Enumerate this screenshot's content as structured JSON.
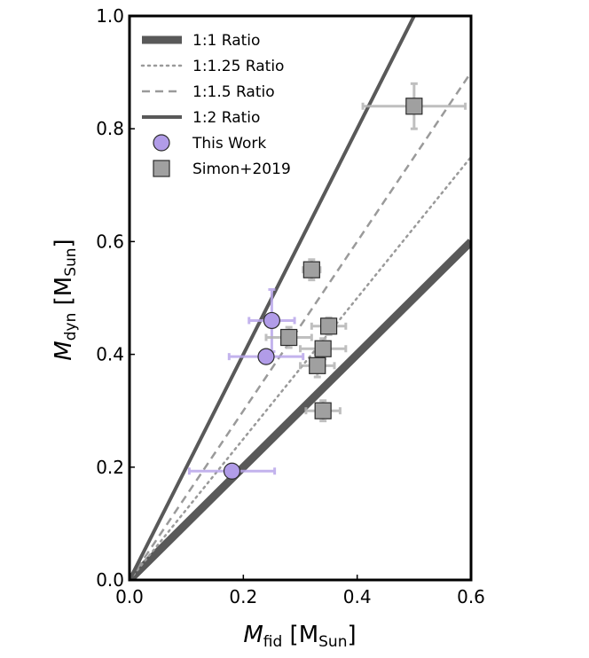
{
  "chart_data": {
    "type": "scatter",
    "title": "",
    "xlabel": {
      "main": "M",
      "sub": "fid",
      "unit_open": " [M",
      "unit_sub": "Sun",
      "unit_close": "]"
    },
    "ylabel": {
      "main": "M",
      "sub": "dyn",
      "unit_open": " [M",
      "unit_sub": "Sun",
      "unit_close": "]"
    },
    "xlim": [
      0.0,
      0.6
    ],
    "ylim": [
      0.0,
      1.0
    ],
    "xticks": [
      0.0,
      0.2,
      0.4,
      0.6
    ],
    "yticks": [
      0.0,
      0.2,
      0.4,
      0.6,
      0.8,
      1.0
    ],
    "xtick_labels": [
      "0.0",
      "0.2",
      "0.4",
      "0.6"
    ],
    "ytick_labels": [
      "0.0",
      "0.2",
      "0.4",
      "0.6",
      "0.8",
      "1.0"
    ],
    "grid": false,
    "legend_position": "top-left",
    "ratio_lines": [
      {
        "name": "1:1 Ratio",
        "slope": 1.0,
        "style": "solid",
        "weight": "thick",
        "color": "#595959"
      },
      {
        "name": "1:1.25 Ratio",
        "slope": 1.25,
        "style": "dotted",
        "weight": "thin",
        "color": "#9a9a9a"
      },
      {
        "name": "1:1.5 Ratio",
        "slope": 1.5,
        "style": "dashed",
        "weight": "thin",
        "color": "#9a9a9a"
      },
      {
        "name": "1:2 Ratio",
        "slope": 2.0,
        "style": "solid",
        "weight": "medium",
        "color": "#595959"
      }
    ],
    "series": [
      {
        "name": "This Work",
        "marker": "circle",
        "color": "#b19ce8",
        "error_color": "#b9a6ea",
        "points": [
          {
            "x": 0.18,
            "y": 0.193,
            "xerr": 0.075,
            "yerr": 0.0
          },
          {
            "x": 0.24,
            "y": 0.396,
            "xerr": 0.065,
            "yerr": 0.0
          },
          {
            "x": 0.25,
            "y": 0.46,
            "xerr": 0.04,
            "yerr": 0.055
          }
        ]
      },
      {
        "name": "Simon+2019",
        "marker": "square",
        "color": "#a0a0a0",
        "error_color": "#b4b4b4",
        "points": [
          {
            "x": 0.5,
            "y": 0.84,
            "xerr": 0.09,
            "yerr": 0.04
          },
          {
            "x": 0.32,
            "y": 0.55,
            "xerr": 0.015,
            "yerr": 0.018
          },
          {
            "x": 0.28,
            "y": 0.43,
            "xerr": 0.04,
            "yerr": 0.018
          },
          {
            "x": 0.35,
            "y": 0.45,
            "xerr": 0.03,
            "yerr": 0.015
          },
          {
            "x": 0.34,
            "y": 0.41,
            "xerr": 0.04,
            "yerr": 0.018
          },
          {
            "x": 0.33,
            "y": 0.38,
            "xerr": 0.03,
            "yerr": 0.02
          },
          {
            "x": 0.34,
            "y": 0.3,
            "xerr": 0.03,
            "yerr": 0.018
          }
        ]
      }
    ]
  }
}
